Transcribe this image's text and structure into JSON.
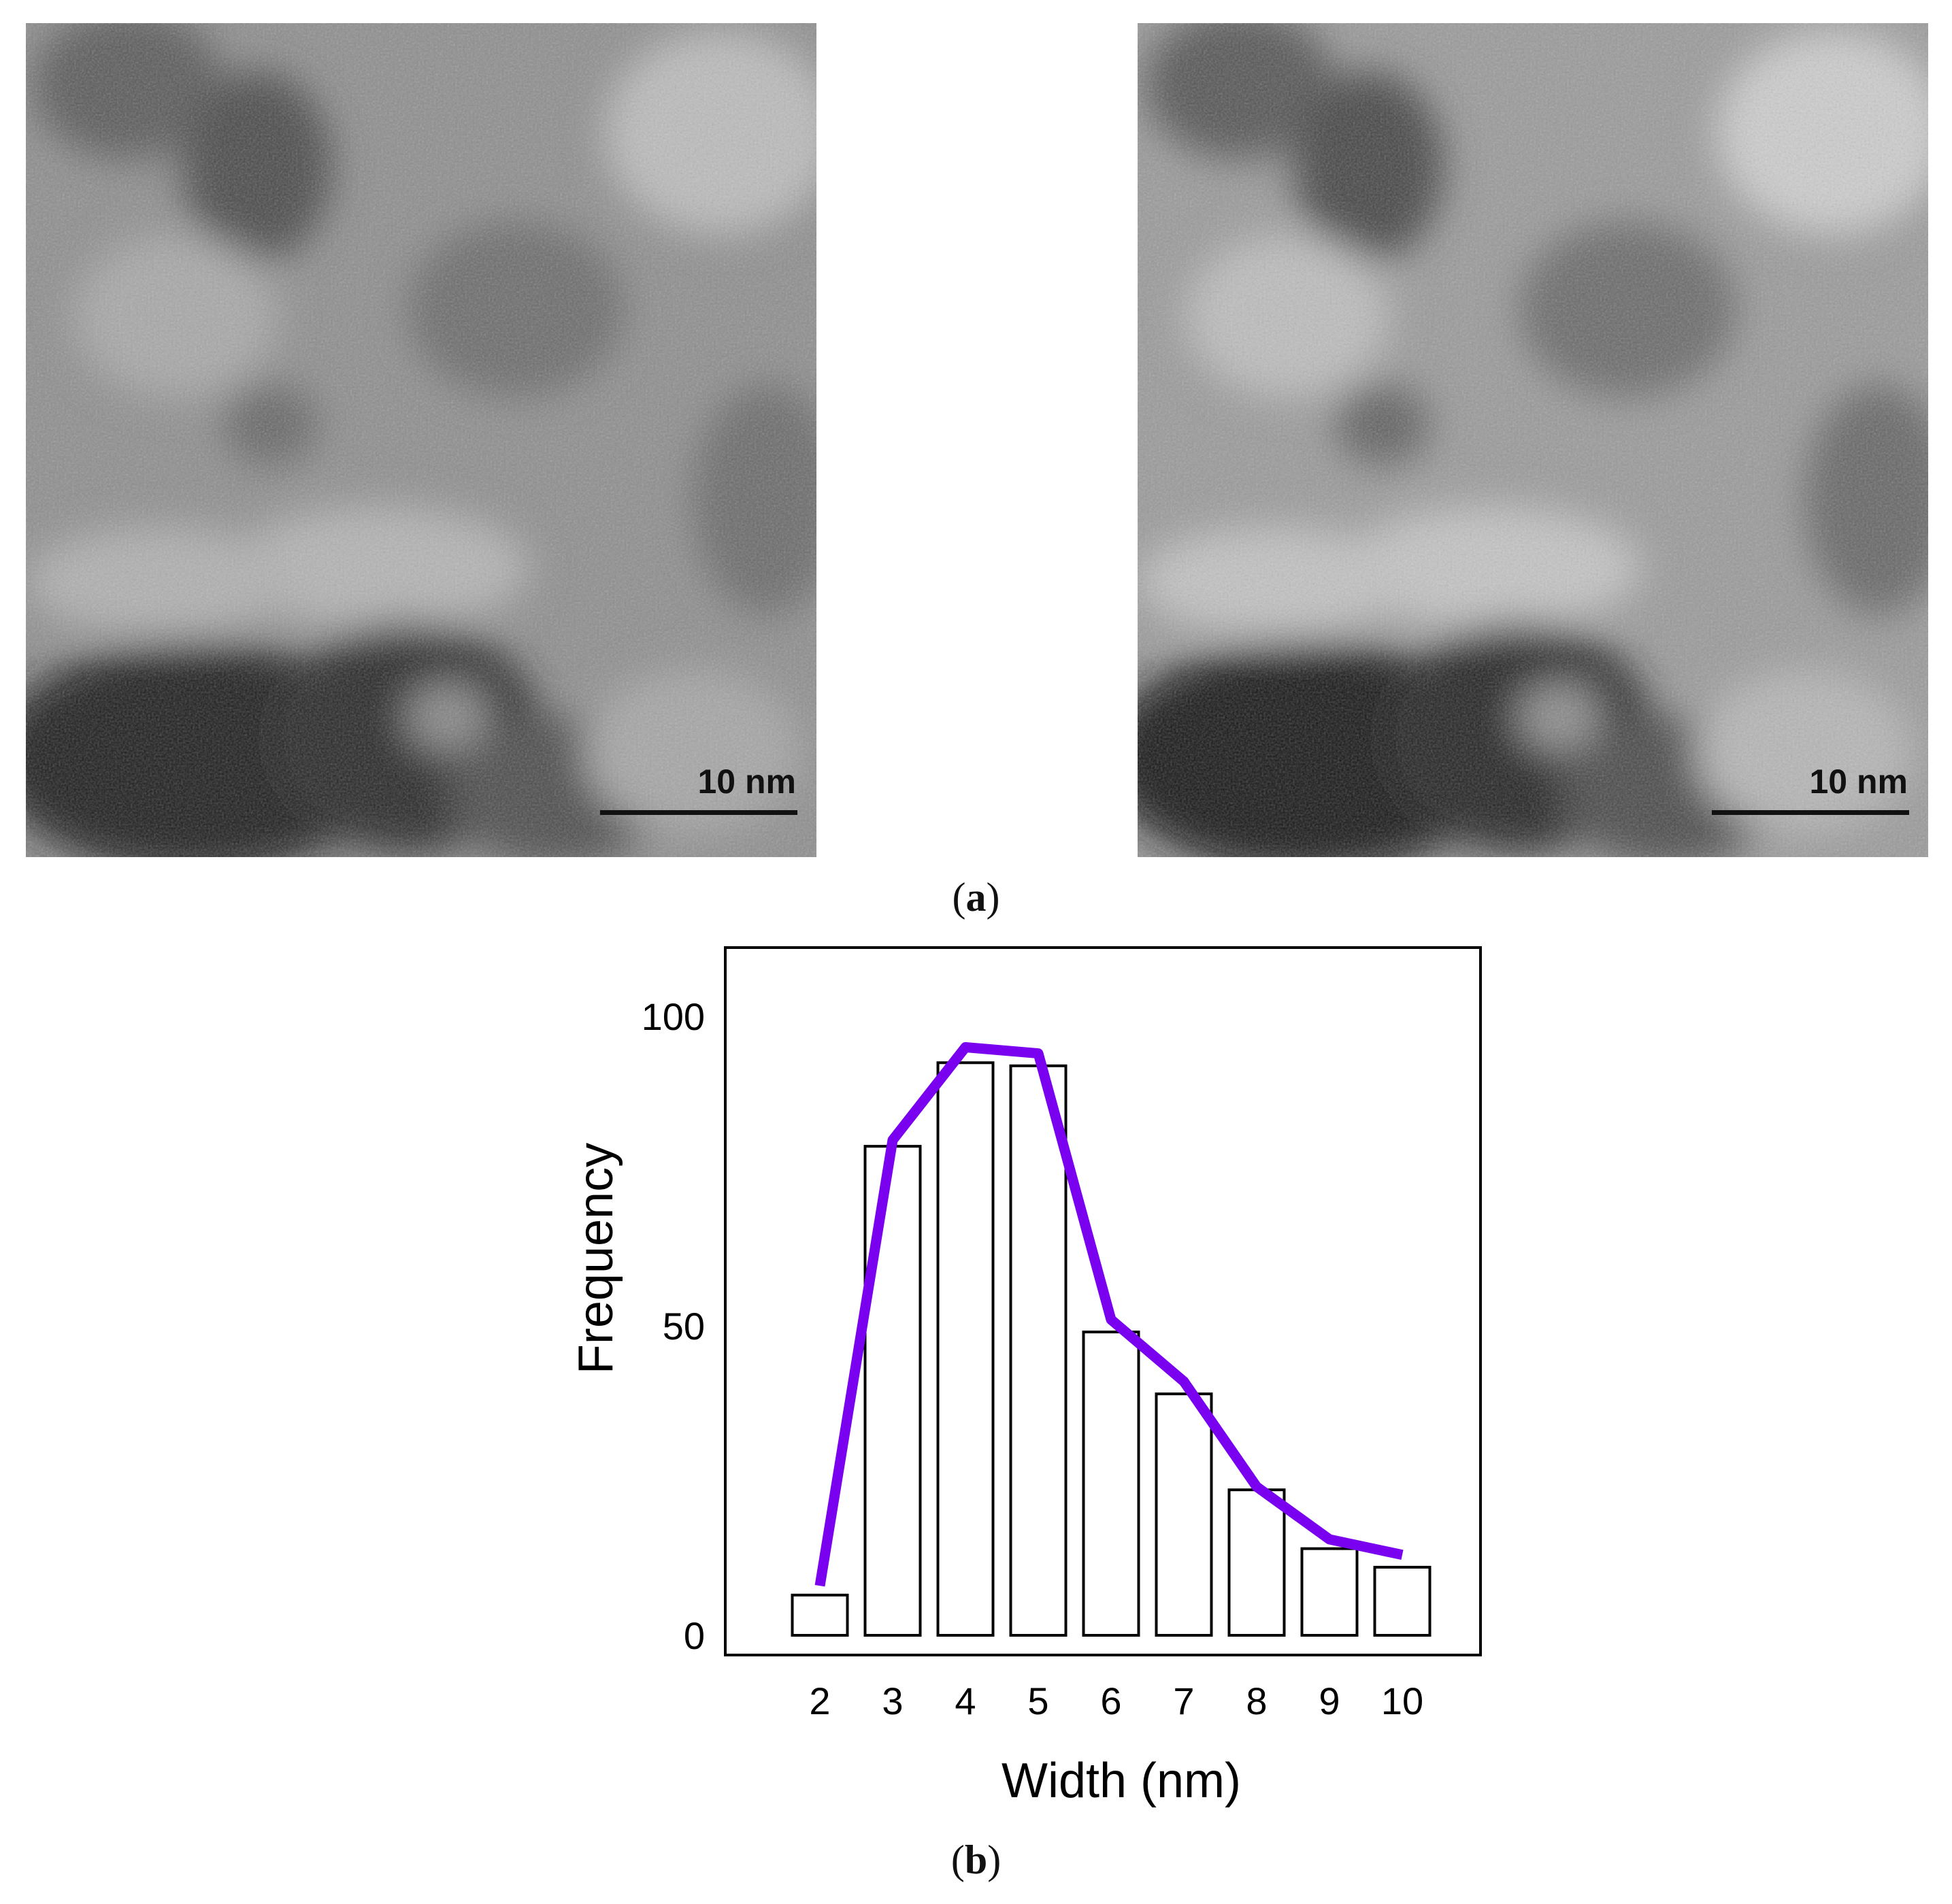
{
  "panel_a": {
    "caption_open": "(",
    "caption_letter": "a",
    "caption_close": ")",
    "images": [
      {
        "label": "left TEM micrograph",
        "scale_bar_text": "10 nm"
      },
      {
        "label": "right TEM micrograph",
        "scale_bar_text": "10 nm"
      }
    ]
  },
  "panel_b": {
    "caption_open": "(",
    "caption_letter": "b",
    "caption_close": ")"
  },
  "colors": {
    "line": "#7a00f0",
    "bar_stroke": "#000000",
    "bar_fill": "#ffffff"
  },
  "chart_data": {
    "type": "bar",
    "title": "",
    "xlabel": "Width (nm)",
    "ylabel": "Frequency",
    "categories": [
      "2",
      "3",
      "4",
      "5",
      "6",
      "7",
      "8",
      "9",
      "10"
    ],
    "values": [
      6.5,
      79,
      92.5,
      92,
      49,
      39,
      23.5,
      14,
      11
    ],
    "line_series": {
      "name": "distribution curve",
      "values": [
        8,
        80,
        95,
        94,
        51,
        41,
        24,
        15.5,
        13
      ]
    },
    "yticks": [
      "0",
      "50",
      "100"
    ],
    "ytick_values": [
      0,
      50,
      100
    ],
    "ylim": [
      -3,
      112
    ],
    "grid": false,
    "legend": "none"
  }
}
